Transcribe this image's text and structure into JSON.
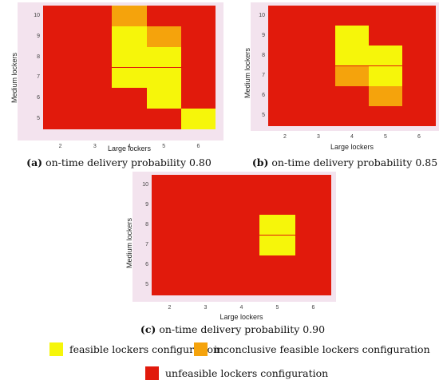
{
  "colors": {
    "feasible": "#f6f60a",
    "inconclusive": "#f5a30c",
    "unfeasible": "#e11a0c",
    "frame": "#f3e3ee"
  },
  "chart_data": [
    {
      "type": "heatmap",
      "panel": "a",
      "caption_tag": "(a)",
      "caption_text": " on-time delivery probability 0.80",
      "xlabel": "Large lockers",
      "ylabel": "Medium lockers",
      "x_ticks": [
        "2",
        "3",
        "4",
        "5",
        "6"
      ],
      "y_ticks": [
        "5",
        "6",
        "7",
        "8",
        "9",
        "10"
      ],
      "cells": [
        {
          "x": 4,
          "y": 10,
          "status": "inconclusive"
        },
        {
          "x": 4,
          "y": 9,
          "status": "feasible"
        },
        {
          "x": 5,
          "y": 9,
          "status": "inconclusive"
        },
        {
          "x": 4,
          "y": 8,
          "status": "feasible"
        },
        {
          "x": 5,
          "y": 8,
          "status": "feasible"
        },
        {
          "x": 4,
          "y": 7,
          "status": "feasible"
        },
        {
          "x": 5,
          "y": 7,
          "status": "feasible"
        },
        {
          "x": 5,
          "y": 6,
          "status": "feasible"
        },
        {
          "x": 6,
          "y": 5,
          "status": "feasible"
        }
      ]
    },
    {
      "type": "heatmap",
      "panel": "b",
      "caption_tag": "(b)",
      "caption_text": " on-time delivery probability 0.85",
      "xlabel": "Large lockers",
      "ylabel": "Medium lockers",
      "x_ticks": [
        "2",
        "3",
        "4",
        "5",
        "6"
      ],
      "y_ticks": [
        "5",
        "6",
        "7",
        "8",
        "9",
        "10"
      ],
      "cells": [
        {
          "x": 4,
          "y": 9,
          "status": "feasible"
        },
        {
          "x": 4,
          "y": 8,
          "status": "feasible"
        },
        {
          "x": 5,
          "y": 8,
          "status": "feasible"
        },
        {
          "x": 4,
          "y": 7,
          "status": "inconclusive"
        },
        {
          "x": 5,
          "y": 7,
          "status": "feasible"
        },
        {
          "x": 5,
          "y": 6,
          "status": "inconclusive"
        }
      ]
    },
    {
      "type": "heatmap",
      "panel": "c",
      "caption_tag": "(c)",
      "caption_text": " on-time delivery probability 0.90",
      "xlabel": "Large lockers",
      "ylabel": "Medium lockers",
      "x_ticks": [
        "2",
        "3",
        "4",
        "5",
        "6"
      ],
      "y_ticks": [
        "5",
        "6",
        "7",
        "8",
        "9",
        "10"
      ],
      "cells": [
        {
          "x": 5,
          "y": 8,
          "status": "feasible"
        },
        {
          "x": 5,
          "y": 7,
          "status": "feasible"
        }
      ]
    }
  ],
  "legend": [
    {
      "label": "feasible lockers configuration",
      "status": "feasible"
    },
    {
      "label": "inconclusive feasible lockers configuration",
      "status": "inconclusive"
    },
    {
      "label": "unfeasible lockers configuration",
      "status": "unfeasible"
    }
  ]
}
